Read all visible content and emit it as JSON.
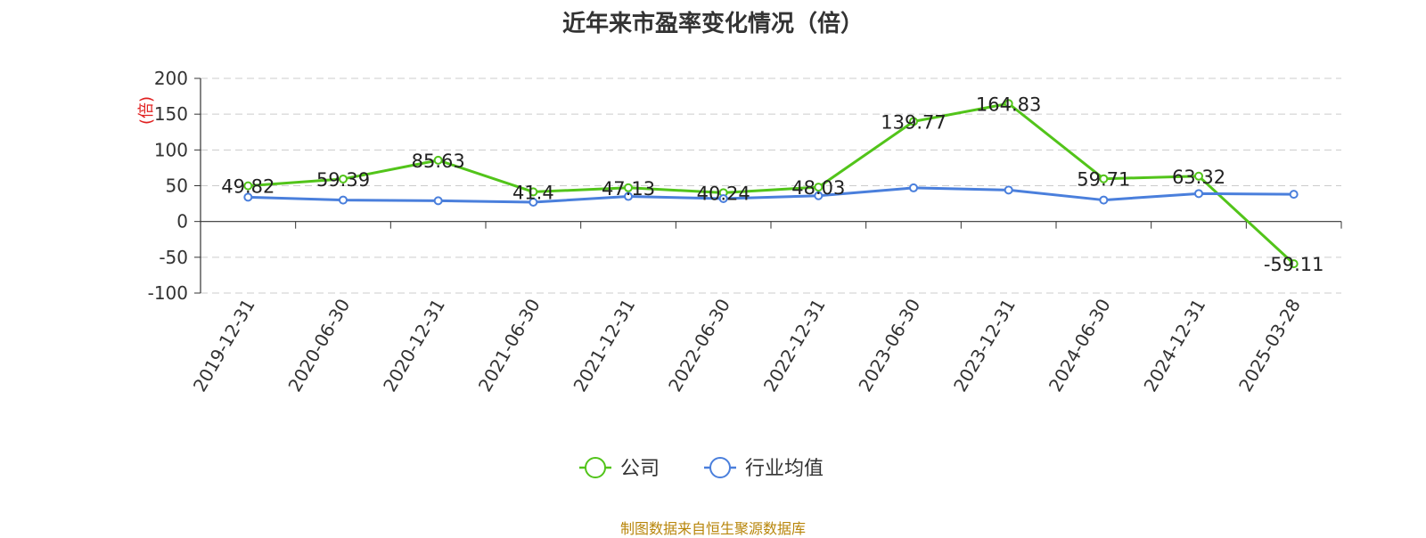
{
  "chart_data": {
    "type": "line",
    "title": "近年来市盈率变化情况（倍）",
    "ylabel": "(倍)",
    "categories": [
      "2019-12-31",
      "2020-06-30",
      "2020-12-31",
      "2021-06-30",
      "2021-12-31",
      "2022-06-30",
      "2022-12-31",
      "2023-06-30",
      "2023-12-31",
      "2024-06-30",
      "2024-12-31",
      "2025-03-28"
    ],
    "yticks": [
      "200",
      "150",
      "100",
      "50",
      "0",
      "-50",
      "-100"
    ],
    "ylim": [
      -100,
      200
    ],
    "grid": true,
    "legend_position": "bottom",
    "series": [
      {
        "name": "公司",
        "color": "#52c41a",
        "values": [
          49.82,
          59.39,
          85.63,
          41.4,
          47.13,
          40.24,
          48.03,
          139.77,
          164.83,
          59.71,
          63.32,
          -59.11
        ],
        "labels": [
          "49.82",
          "59.39",
          "85.63",
          "41.4",
          "47.13",
          "40.24",
          "48.03",
          "139.77",
          "164.83",
          "59.71",
          "63.32",
          "-59.11"
        ]
      },
      {
        "name": "行业均值",
        "color": "#4a7fdc",
        "values": [
          34,
          30,
          29,
          27,
          35,
          32,
          36,
          47,
          44,
          30,
          39,
          38
        ]
      }
    ]
  },
  "footer": {
    "source": "制图数据来自恒生聚源数据库"
  },
  "colors": {
    "axis": "#333333",
    "grid": "#cccccc",
    "ylabel": "#e02020",
    "source": "#b8860b"
  }
}
